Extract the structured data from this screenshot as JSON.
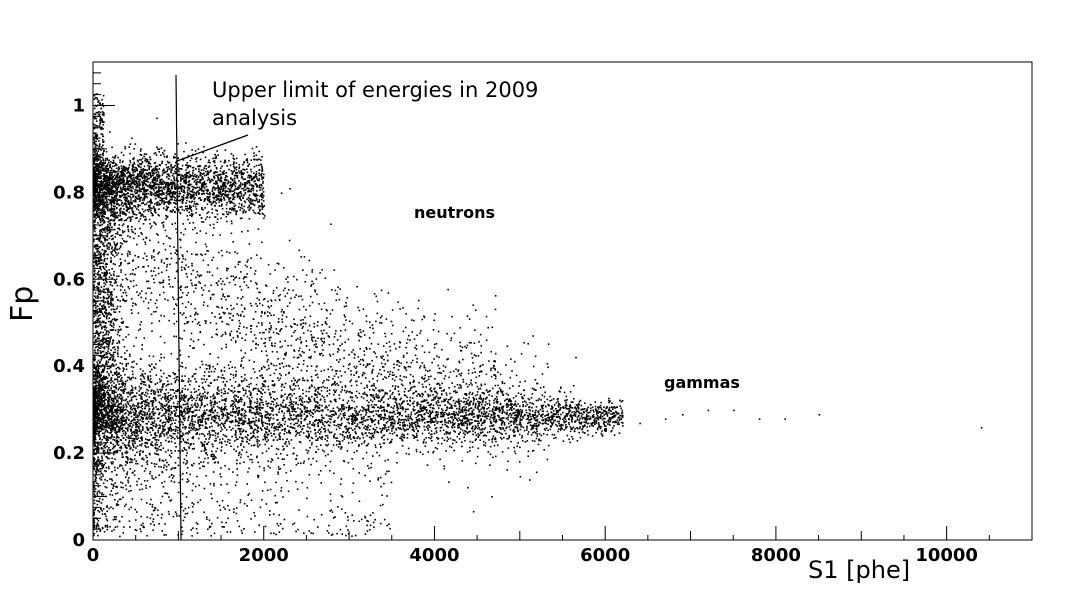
{
  "chart_data": {
    "type": "scatter",
    "xlabel": "S1 [phe]",
    "ylabel": "Fp",
    "xlim": [
      0,
      11000
    ],
    "ylim": [
      0,
      1.1
    ],
    "x_ticks": [
      "0",
      "2000",
      "4000",
      "6000",
      "8000",
      "10000"
    ],
    "x_tick_values": [
      0,
      2000,
      4000,
      6000,
      8000,
      10000
    ],
    "y_ticks": [
      "0",
      "0.2",
      "0.4",
      "0.6",
      "0.8",
      "1"
    ],
    "y_tick_values": [
      0,
      0.2,
      0.4,
      0.6,
      0.8,
      1.0
    ],
    "grid": false,
    "annotations": [
      {
        "text": "Upper limit of energies in 2009 analysis",
        "line1": "Upper limit of energies in 2009",
        "line2": "analysis",
        "x_line": 1000
      },
      {
        "text": "neutrons"
      },
      {
        "text": "gammas"
      }
    ],
    "populations": [
      {
        "label": "neutrons",
        "band_center_Fp": 0.82,
        "S1_range": [
          0,
          2000
        ],
        "approx_endpoint_S1": 2200
      },
      {
        "label": "gammas",
        "band_center_Fp": 0.29,
        "S1_range": [
          0,
          6200
        ],
        "approx_endpoint_S1": 10400
      }
    ]
  }
}
